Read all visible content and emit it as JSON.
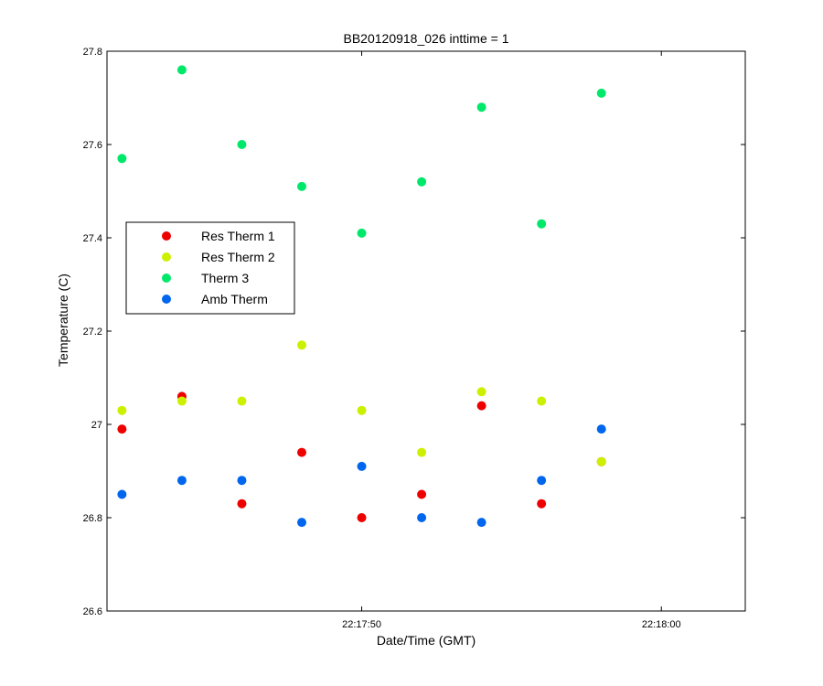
{
  "chart_data": {
    "type": "scatter",
    "title": "BB20120918_026 inttime = 1",
    "xlabel": "Date/Time (GMT)",
    "ylabel": "Temperature (C)",
    "x_unit": "time_of_day",
    "xlim": [
      "22:17:41.5",
      "22:18:02.8"
    ],
    "ylim": [
      26.6,
      27.8
    ],
    "x_ticks": [
      "22:17:50",
      "22:18:00"
    ],
    "y_ticks": [
      "26.6",
      "26.8",
      "27",
      "27.2",
      "27.4",
      "27.6",
      "27.8"
    ],
    "x": [
      "22:17:42",
      "22:17:44",
      "22:17:46",
      "22:17:48",
      "22:17:50",
      "22:17:52",
      "22:17:54",
      "22:17:56",
      "22:17:58"
    ],
    "grid": false,
    "legend_position": "left",
    "series": [
      {
        "name": "Res Therm 1",
        "color": "#ee0000",
        "values": [
          26.99,
          27.06,
          26.83,
          26.94,
          26.8,
          26.85,
          27.04,
          26.83,
          26.92
        ]
      },
      {
        "name": "Res Therm 2",
        "color": "#ccf000",
        "values": [
          27.03,
          27.05,
          27.05,
          27.17,
          27.03,
          26.94,
          27.07,
          27.05,
          26.92
        ]
      },
      {
        "name": "Therm 3",
        "color": "#00e86a",
        "values": [
          27.57,
          27.76,
          27.6,
          27.51,
          27.41,
          27.52,
          27.68,
          27.43,
          27.71
        ]
      },
      {
        "name": "Amb Therm",
        "color": "#0066ee",
        "values": [
          26.85,
          26.88,
          26.88,
          26.79,
          26.91,
          26.8,
          26.79,
          26.88,
          26.99
        ]
      }
    ]
  }
}
